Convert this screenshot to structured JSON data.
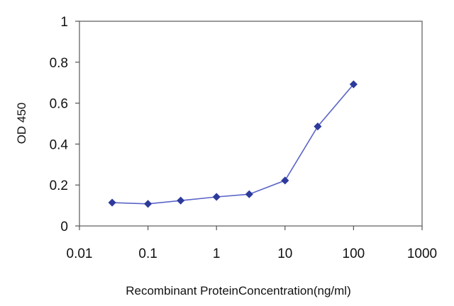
{
  "chart_data": {
    "type": "scatter",
    "x_scale": "log",
    "xlabel": "Recombinant ProteinConcentration(ng/ml)",
    "ylabel": "OD 450",
    "xlim": [
      0.01,
      1000
    ],
    "ylim": [
      0,
      1
    ],
    "x_ticks": [
      0.01,
      0.1,
      1,
      10,
      100,
      1000
    ],
    "x_tick_labels": [
      "0.01",
      "0.1",
      "1",
      "10",
      "100",
      "1000"
    ],
    "y_ticks": [
      0,
      0.2,
      0.4,
      0.6,
      0.8,
      1
    ],
    "y_tick_labels": [
      "0",
      "0.2",
      "0.4",
      "0.6",
      "0.8",
      "1"
    ],
    "grid": false,
    "series": [
      {
        "color": "#2d3a9c",
        "line_color": "#5a64c8",
        "marker": "diamond",
        "x": [
          0.03,
          0.1,
          0.3,
          1,
          3,
          10,
          30,
          100
        ],
        "y": [
          0.114,
          0.108,
          0.124,
          0.142,
          0.155,
          0.222,
          0.486,
          0.692
        ]
      }
    ]
  }
}
